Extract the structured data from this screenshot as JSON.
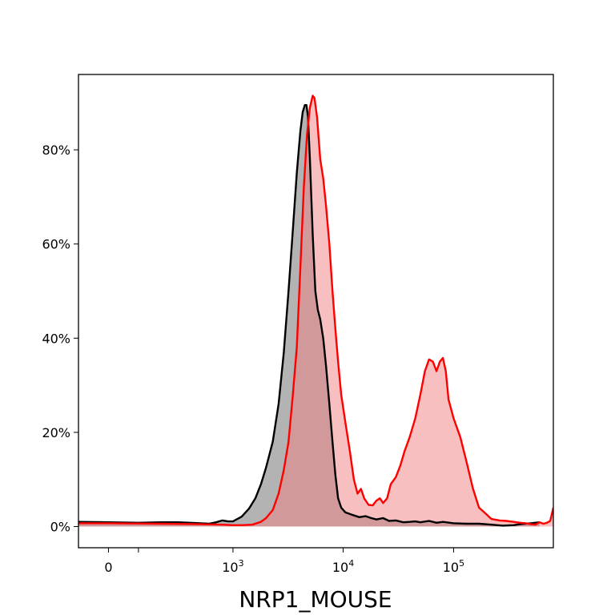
{
  "chart_data": {
    "type": "area",
    "title": "",
    "xlabel": "NRP1_MOUSE",
    "ylabel": "",
    "x_scale": "biexponential (linear near 0, log above ~10^3)",
    "xlim": [
      -100,
      800000
    ],
    "ylim": [
      -4.5,
      96
    ],
    "grid": false,
    "legend": "none",
    "x_ticks": [
      {
        "value": 0,
        "label": "0",
        "sup": ""
      },
      {
        "value": 100,
        "label": "",
        "sup": ""
      },
      {
        "value": 1000,
        "label": "10",
        "sup": "3"
      },
      {
        "value": 10000,
        "label": "10",
        "sup": "4"
      },
      {
        "value": 100000,
        "label": "10",
        "sup": "5"
      }
    ],
    "y_ticks": [
      {
        "value": 0,
        "label": "0%"
      },
      {
        "value": 20,
        "label": "20%"
      },
      {
        "value": 40,
        "label": "40%"
      },
      {
        "value": 60,
        "label": "60%"
      },
      {
        "value": 80,
        "label": "80%"
      }
    ],
    "series": [
      {
        "line_color": "#000000",
        "fill_color": "#808080",
        "fill_opacity": 0.6,
        "points": [
          [
            -100,
            1.0
          ],
          [
            0,
            0.9
          ],
          [
            100,
            0.8
          ],
          [
            200,
            0.9
          ],
          [
            300,
            0.9
          ],
          [
            400,
            0.8
          ],
          [
            500,
            0.7
          ],
          [
            600,
            0.6
          ],
          [
            700,
            0.9
          ],
          [
            800,
            1.3
          ],
          [
            900,
            1.1
          ],
          [
            1000,
            1.1
          ],
          [
            1200,
            2.1
          ],
          [
            1400,
            3.8
          ],
          [
            1600,
            6.0
          ],
          [
            1800,
            9.0
          ],
          [
            2000,
            12.5
          ],
          [
            2300,
            18.0
          ],
          [
            2600,
            26.0
          ],
          [
            2900,
            37.0
          ],
          [
            3200,
            50.0
          ],
          [
            3500,
            63.0
          ],
          [
            3800,
            75.0
          ],
          [
            4100,
            84.0
          ],
          [
            4300,
            88.0
          ],
          [
            4500,
            89.5
          ],
          [
            4650,
            89.5
          ],
          [
            4800,
            87.0
          ],
          [
            5000,
            78.0
          ],
          [
            5300,
            62.0
          ],
          [
            5600,
            50.0
          ],
          [
            5900,
            46.0
          ],
          [
            6200,
            44.0
          ],
          [
            6600,
            40.0
          ],
          [
            7000,
            34.0
          ],
          [
            7500,
            26.0
          ],
          [
            8000,
            18.0
          ],
          [
            8500,
            11.0
          ],
          [
            9000,
            6.0
          ],
          [
            9600,
            4.0
          ],
          [
            10500,
            3.0
          ],
          [
            12000,
            2.5
          ],
          [
            14000,
            2.0
          ],
          [
            16000,
            2.2
          ],
          [
            18000,
            1.8
          ],
          [
            20000,
            1.5
          ],
          [
            23000,
            1.8
          ],
          [
            26000,
            1.2
          ],
          [
            30000,
            1.3
          ],
          [
            35000,
            0.9
          ],
          [
            40000,
            1.0
          ],
          [
            45000,
            1.1
          ],
          [
            50000,
            0.9
          ],
          [
            60000,
            1.2
          ],
          [
            70000,
            0.8
          ],
          [
            80000,
            1.0
          ],
          [
            100000,
            0.7
          ],
          [
            130000,
            0.6
          ],
          [
            170000,
            0.6
          ],
          [
            220000,
            0.4
          ],
          [
            280000,
            0.2
          ],
          [
            350000,
            0.3
          ],
          [
            400000,
            0.5
          ],
          [
            500000,
            0.7
          ],
          [
            600000,
            0.9
          ]
        ]
      },
      {
        "line_color": "#ff0000",
        "fill_color": "#f08080",
        "fill_opacity": 0.5,
        "points": [
          [
            -100,
            0.7
          ],
          [
            0,
            0.7
          ],
          [
            200,
            0.6
          ],
          [
            500,
            0.5
          ],
          [
            800,
            0.4
          ],
          [
            1000,
            0.3
          ],
          [
            1200,
            0.3
          ],
          [
            1500,
            0.4
          ],
          [
            1800,
            1.0
          ],
          [
            2000,
            1.8
          ],
          [
            2300,
            3.5
          ],
          [
            2600,
            7.0
          ],
          [
            2900,
            12.0
          ],
          [
            3200,
            18.0
          ],
          [
            3500,
            28.0
          ],
          [
            3800,
            38.0
          ],
          [
            4100,
            55.0
          ],
          [
            4400,
            72.0
          ],
          [
            4700,
            83.0
          ],
          [
            5000,
            89.0
          ],
          [
            5300,
            91.5
          ],
          [
            5500,
            91.0
          ],
          [
            5800,
            87.0
          ],
          [
            6200,
            78.0
          ],
          [
            6600,
            74.0
          ],
          [
            7000,
            68.0
          ],
          [
            7500,
            60.0
          ],
          [
            8000,
            50.0
          ],
          [
            8500,
            42.0
          ],
          [
            9000,
            35.0
          ],
          [
            9600,
            28.0
          ],
          [
            10500,
            22.0
          ],
          [
            11500,
            16.0
          ],
          [
            12500,
            10.0
          ],
          [
            13500,
            7.0
          ],
          [
            14500,
            8.0
          ],
          [
            15500,
            6.0
          ],
          [
            17000,
            4.6
          ],
          [
            18500,
            4.5
          ],
          [
            20000,
            5.5
          ],
          [
            21500,
            6.0
          ],
          [
            23000,
            5.0
          ],
          [
            25000,
            6.0
          ],
          [
            27000,
            9.0
          ],
          [
            30000,
            10.5
          ],
          [
            33000,
            13.0
          ],
          [
            36000,
            16.0
          ],
          [
            40000,
            19.0
          ],
          [
            45000,
            23.0
          ],
          [
            50000,
            28.0
          ],
          [
            55000,
            33.0
          ],
          [
            60000,
            35.5
          ],
          [
            65000,
            35.0
          ],
          [
            70000,
            33.0
          ],
          [
            75000,
            35.0
          ],
          [
            80000,
            35.8
          ],
          [
            85000,
            33.0
          ],
          [
            90000,
            27.0
          ],
          [
            100000,
            23.0
          ],
          [
            115000,
            19.0
          ],
          [
            130000,
            14.0
          ],
          [
            150000,
            8.0
          ],
          [
            170000,
            4.0
          ],
          [
            190000,
            3.0
          ],
          [
            220000,
            1.6
          ],
          [
            260000,
            1.3
          ],
          [
            300000,
            1.2
          ],
          [
            350000,
            1.0
          ],
          [
            400000,
            0.8
          ],
          [
            450000,
            0.7
          ],
          [
            500000,
            0.5
          ],
          [
            550000,
            0.4
          ],
          [
            600000,
            0.9
          ],
          [
            650000,
            0.6
          ],
          [
            700000,
            0.8
          ],
          [
            750000,
            1.2
          ],
          [
            800000,
            4.0
          ]
        ]
      }
    ]
  }
}
